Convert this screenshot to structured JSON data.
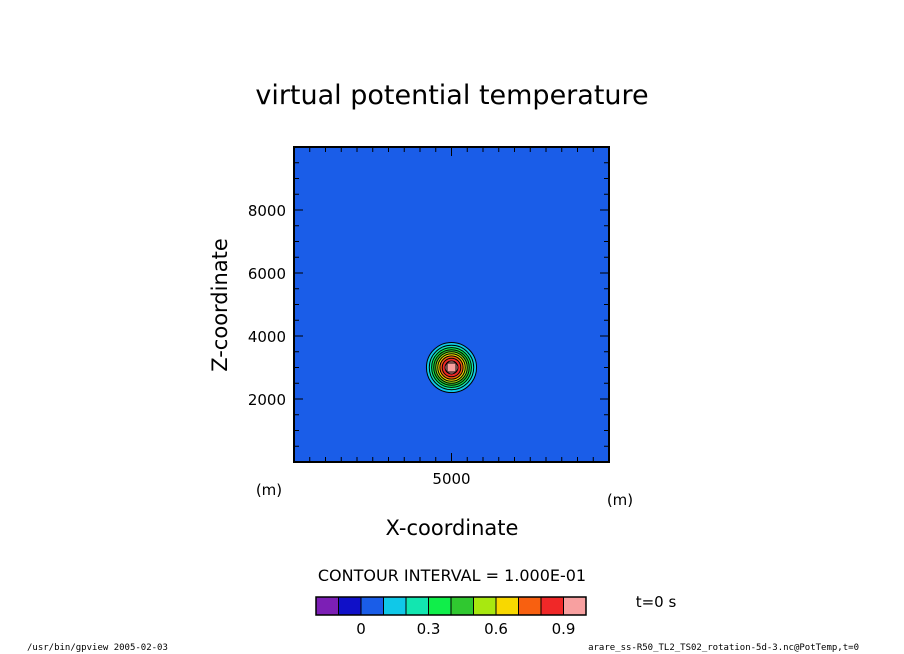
{
  "chart_data": {
    "type": "heatmap",
    "title": "virtual potential temperature",
    "xlabel": "X-coordinate",
    "ylabel": "Z-coordinate",
    "x_unit": "(m)",
    "y_unit": "(m)",
    "xlim": [
      0,
      10000
    ],
    "ylim": [
      0,
      10000
    ],
    "x_tick_labels": [
      5000
    ],
    "y_tick_labels": [
      2000,
      4000,
      6000,
      8000
    ],
    "x_minor_tick_step": 500,
    "y_minor_tick_step": 500,
    "field": {
      "shape": "gaussian-bubble",
      "center": [
        5000,
        3000
      ],
      "background_value": 0.0,
      "peak_value": 1.0,
      "outer_radius": 1000
    },
    "contour_interval_label": "CONTOUR INTERVAL = 1.000E-01",
    "contour_levels": [
      0.0,
      0.1,
      0.2,
      0.3,
      0.4,
      0.5,
      0.6,
      0.7,
      0.8,
      0.9
    ],
    "colorbar": {
      "colors": [
        "#7c1fb5",
        "#1010c8",
        "#1a5de8",
        "#10c8e8",
        "#12e6b0",
        "#10ee4a",
        "#30c830",
        "#a8e810",
        "#f8d800",
        "#f86010",
        "#f02828",
        "#f8a0a0"
      ],
      "tick_labels": [
        "0",
        "0.3",
        "0.6",
        "0.9"
      ],
      "tick_values": [
        0,
        0.3,
        0.6,
        0.9
      ],
      "boundaries": [
        -0.2,
        -0.1,
        0.0,
        0.1,
        0.2,
        0.3,
        0.4,
        0.5,
        0.6,
        0.7,
        0.8,
        0.9,
        1.0
      ]
    },
    "time_label": "t=0 s",
    "footer_left": "/usr/bin/gpview  2005-02-03",
    "footer_right": "arare_ss-R50_TL2_TS02_rotation-5d-3.nc@PotTemp,t=0",
    "background_color": "#1a5de8"
  }
}
